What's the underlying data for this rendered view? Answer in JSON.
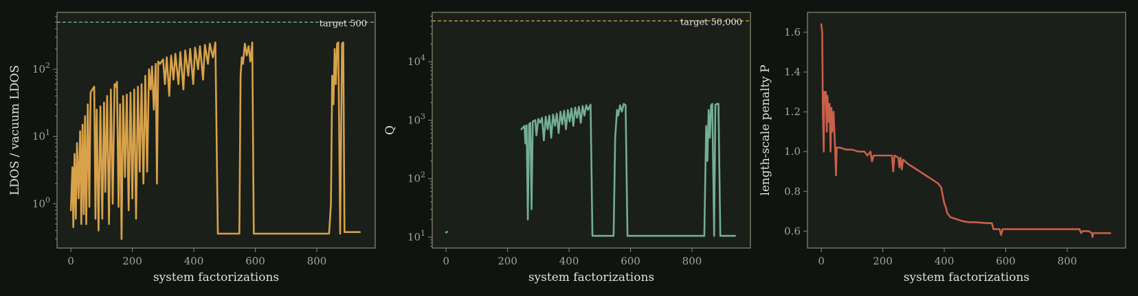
{
  "chart_data": [
    {
      "type": "line",
      "xlabel": "system factorizations",
      "ylabel": "LDOS / vacuum LDOS",
      "yscale": "log",
      "xlim": [
        -45,
        990
      ],
      "ylim": [
        0.22,
        700
      ],
      "xticks": [
        0,
        200,
        400,
        600,
        800
      ],
      "yticks": [
        1,
        10,
        100
      ],
      "ytick_labels": [
        "10^0",
        "10^1",
        "10^2"
      ],
      "grid": false,
      "colors": {
        "series": "#d8a24a",
        "target": "#7fb7a4"
      },
      "target": {
        "value": 500,
        "label": "target 500"
      },
      "series": [
        {
          "values": [
            [
              0,
              0.8
            ],
            [
              5,
              3.5
            ],
            [
              8,
              0.45
            ],
            [
              12,
              5.5
            ],
            [
              16,
              0.6
            ],
            [
              20,
              8
            ],
            [
              25,
              1.2
            ],
            [
              30,
              12
            ],
            [
              34,
              0.5
            ],
            [
              38,
              15
            ],
            [
              42,
              0.7
            ],
            [
              46,
              20
            ],
            [
              50,
              0.5
            ],
            [
              55,
              30
            ],
            [
              60,
              0.9
            ],
            [
              64,
              45
            ],
            [
              70,
              50
            ],
            [
              76,
              55
            ],
            [
              80,
              0.6
            ],
            [
              84,
              25
            ],
            [
              90,
              0.4
            ],
            [
              96,
              28
            ],
            [
              102,
              0.6
            ],
            [
              108,
              32
            ],
            [
              112,
              1.5
            ],
            [
              118,
              40
            ],
            [
              124,
              0.5
            ],
            [
              130,
              50
            ],
            [
              136,
              1.0
            ],
            [
              142,
              60
            ],
            [
              146,
              55
            ],
            [
              150,
              65
            ],
            [
              155,
              0.9
            ],
            [
              160,
              30
            ],
            [
              165,
              0.3
            ],
            [
              170,
              40
            ],
            [
              176,
              2.5
            ],
            [
              182,
              42
            ],
            [
              188,
              0.8
            ],
            [
              194,
              45
            ],
            [
              200,
              1.2
            ],
            [
              206,
              50
            ],
            [
              212,
              0.6
            ],
            [
              218,
              55
            ],
            [
              224,
              3
            ],
            [
              230,
              60
            ],
            [
              236,
              2
            ],
            [
              242,
              80
            ],
            [
              248,
              3
            ],
            [
              254,
              100
            ],
            [
              260,
              50
            ],
            [
              264,
              110
            ],
            [
              270,
              25
            ],
            [
              276,
              120
            ],
            [
              280,
              2
            ],
            [
              284,
              130
            ],
            [
              290,
              120
            ],
            [
              300,
              140
            ],
            [
              306,
              60
            ],
            [
              312,
              150
            ],
            [
              320,
              40
            ],
            [
              326,
              160
            ],
            [
              334,
              70
            ],
            [
              340,
              170
            ],
            [
              350,
              60
            ],
            [
              356,
              180
            ],
            [
              366,
              50
            ],
            [
              372,
              190
            ],
            [
              382,
              80
            ],
            [
              388,
              200
            ],
            [
              398,
              60
            ],
            [
              404,
              210
            ],
            [
              414,
              100
            ],
            [
              420,
              220
            ],
            [
              430,
              70
            ],
            [
              436,
              230
            ],
            [
              446,
              120
            ],
            [
              452,
              240
            ],
            [
              462,
              150
            ],
            [
              470,
              250
            ],
            [
              478,
              0.36
            ],
            [
              520,
              0.36
            ],
            [
              548,
              0.36
            ],
            [
              552,
              80
            ],
            [
              556,
              150
            ],
            [
              560,
              120
            ],
            [
              566,
              240
            ],
            [
              572,
              160
            ],
            [
              578,
              220
            ],
            [
              584,
              130
            ],
            [
              590,
              250
            ],
            [
              595,
              0.36
            ],
            [
              840,
              0.36
            ],
            [
              846,
              1.0
            ],
            [
              850,
              80
            ],
            [
              854,
              30
            ],
            [
              858,
              200
            ],
            [
              862,
              60
            ],
            [
              866,
              240
            ],
            [
              870,
              250
            ],
            [
              876,
              0.36
            ],
            [
              882,
              240
            ],
            [
              886,
              250
            ],
            [
              890,
              0.38
            ],
            [
              940,
              0.38
            ]
          ]
        }
      ]
    },
    {
      "type": "line",
      "xlabel": "system factorizations",
      "ylabel": "Q",
      "yscale": "log",
      "xlim": [
        -45,
        990
      ],
      "ylim": [
        6.5,
        70000
      ],
      "xticks": [
        0,
        200,
        400,
        600,
        800
      ],
      "yticks": [
        10,
        100,
        1000,
        10000
      ],
      "ytick_labels": [
        "10^1",
        "10^2",
        "10^3",
        "10^4"
      ],
      "grid": false,
      "colors": {
        "series": "#74ae94",
        "target": "#d8a24a"
      },
      "target": {
        "value": 50000,
        "label": "target 50,000"
      },
      "series": [
        {
          "values": [
            [
              0,
              12
            ],
            [
              3,
              12.3
            ]
          ]
        },
        {
          "values": [
            [
              245,
              700
            ],
            [
              250,
              750
            ],
            [
              255,
              800
            ],
            [
              258,
              400
            ],
            [
              262,
              820
            ],
            [
              266,
              20
            ],
            [
              270,
              850
            ],
            [
              274,
              900
            ],
            [
              278,
              30
            ],
            [
              282,
              950
            ],
            [
              290,
              1000
            ],
            [
              294,
              550
            ],
            [
              300,
              1050
            ],
            [
              306,
              900
            ],
            [
              312,
              1100
            ],
            [
              318,
              450
            ],
            [
              324,
              1150
            ],
            [
              330,
              700
            ],
            [
              336,
              1200
            ],
            [
              342,
              500
            ],
            [
              348,
              1250
            ],
            [
              354,
              800
            ],
            [
              360,
              1300
            ],
            [
              366,
              600
            ],
            [
              372,
              1400
            ],
            [
              378,
              850
            ],
            [
              384,
              1450
            ],
            [
              390,
              700
            ],
            [
              396,
              1500
            ],
            [
              402,
              950
            ],
            [
              408,
              1600
            ],
            [
              414,
              800
            ],
            [
              420,
              1650
            ],
            [
              426,
              1100
            ],
            [
              432,
              1700
            ],
            [
              438,
              900
            ],
            [
              444,
              1750
            ],
            [
              450,
              1200
            ],
            [
              456,
              1800
            ],
            [
              462,
              1500
            ],
            [
              470,
              1850
            ],
            [
              476,
              10.5
            ],
            [
              545,
              10.5
            ],
            [
              550,
              500
            ],
            [
              556,
              1500
            ],
            [
              560,
              1200
            ],
            [
              566,
              1800
            ],
            [
              572,
              1400
            ],
            [
              578,
              1900
            ],
            [
              584,
              1800
            ],
            [
              590,
              10.5
            ],
            [
              840,
              10.5
            ],
            [
              846,
              800
            ],
            [
              850,
              200
            ],
            [
              854,
              1500
            ],
            [
              858,
              500
            ],
            [
              862,
              1800
            ],
            [
              866,
              1900
            ],
            [
              872,
              10.5
            ],
            [
              876,
              1850
            ],
            [
              882,
              1900
            ],
            [
              886,
              1900
            ],
            [
              892,
              10.5
            ],
            [
              940,
              10.5
            ]
          ]
        }
      ]
    },
    {
      "type": "line",
      "xlabel": "system factorizations",
      "ylabel": "length-scale penalty P",
      "yscale": "linear",
      "xlim": [
        -45,
        990
      ],
      "ylim": [
        0.515,
        1.7
      ],
      "xticks": [
        0,
        200,
        400,
        600,
        800
      ],
      "yticks": [
        0.6,
        0.8,
        1.0,
        1.2,
        1.4,
        1.6
      ],
      "ytick_labels": [
        "0.6",
        "0.8",
        "1.0",
        "1.2",
        "1.4",
        "1.6"
      ],
      "grid": false,
      "colors": {
        "series": "#c9604a"
      },
      "series": [
        {
          "values": [
            [
              0,
              1.64
            ],
            [
              3,
              1.6
            ],
            [
              5,
              1.2
            ],
            [
              8,
              1.0
            ],
            [
              10,
              1.3
            ],
            [
              12,
              1.25
            ],
            [
              15,
              1.3
            ],
            [
              18,
              1.1
            ],
            [
              20,
              1.28
            ],
            [
              24,
              1.15
            ],
            [
              27,
              1.24
            ],
            [
              30,
              1.0
            ],
            [
              33,
              1.22
            ],
            [
              36,
              1.1
            ],
            [
              40,
              1.2
            ],
            [
              44,
              1.05
            ],
            [
              48,
              0.88
            ],
            [
              50,
              1.02
            ],
            [
              60,
              1.02
            ],
            [
              80,
              1.01
            ],
            [
              100,
              1.01
            ],
            [
              120,
              1.0
            ],
            [
              140,
              1.0
            ],
            [
              150,
              0.98
            ],
            [
              160,
              1.0
            ],
            [
              165,
              0.95
            ],
            [
              170,
              0.98
            ],
            [
              200,
              0.98
            ],
            [
              230,
              0.98
            ],
            [
              234,
              0.9
            ],
            [
              238,
              0.98
            ],
            [
              250,
              0.97
            ],
            [
              254,
              0.92
            ],
            [
              258,
              0.97
            ],
            [
              262,
              0.91
            ],
            [
              266,
              0.96
            ],
            [
              280,
              0.94
            ],
            [
              300,
              0.92
            ],
            [
              320,
              0.9
            ],
            [
              340,
              0.88
            ],
            [
              360,
              0.86
            ],
            [
              380,
              0.84
            ],
            [
              390,
              0.82
            ],
            [
              395,
              0.78
            ],
            [
              400,
              0.74
            ],
            [
              405,
              0.72
            ],
            [
              410,
              0.69
            ],
            [
              420,
              0.67
            ],
            [
              440,
              0.66
            ],
            [
              460,
              0.65
            ],
            [
              480,
              0.645
            ],
            [
              500,
              0.645
            ],
            [
              540,
              0.64
            ],
            [
              555,
              0.64
            ],
            [
              560,
              0.61
            ],
            [
              580,
              0.61
            ],
            [
              585,
              0.58
            ],
            [
              590,
              0.61
            ],
            [
              620,
              0.61
            ],
            [
              700,
              0.61
            ],
            [
              800,
              0.61
            ],
            [
              840,
              0.61
            ],
            [
              845,
              0.59
            ],
            [
              850,
              0.6
            ],
            [
              870,
              0.6
            ],
            [
              880,
              0.59
            ],
            [
              882,
              0.57
            ],
            [
              885,
              0.59
            ],
            [
              940,
              0.59
            ]
          ]
        }
      ]
    }
  ]
}
